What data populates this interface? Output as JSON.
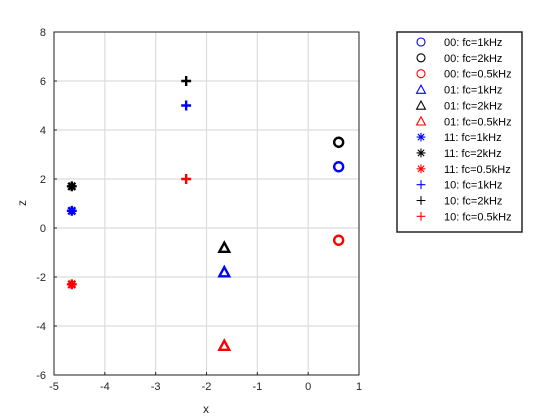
{
  "chart_data": {
    "type": "scatter",
    "title": "",
    "xlabel": "x",
    "ylabel": "z",
    "xlim": [
      -5,
      1
    ],
    "ylim": [
      -6,
      8
    ],
    "xticks": [
      -5,
      -4,
      -3,
      -2,
      -1,
      0,
      1
    ],
    "yticks": [
      -6,
      -4,
      -2,
      0,
      2,
      4,
      6,
      8
    ],
    "xtick_labels": [
      "-5",
      "-4",
      "-3",
      "-2",
      "-1",
      "0",
      "1"
    ],
    "ytick_labels": [
      "-6",
      "-4",
      "-2",
      "0",
      "2",
      "4",
      "6",
      "8"
    ],
    "grid": true,
    "legend_position": "outside-top-right",
    "colors": {
      "blue": "#0000ff",
      "black": "#000000",
      "red": "#ff0000"
    },
    "series": [
      {
        "name": "00: fc=1kHz",
        "marker": "circle",
        "color": "blue",
        "points": [
          [
            0.6,
            2.5
          ]
        ]
      },
      {
        "name": "00: fc=2kHz",
        "marker": "circle",
        "color": "black",
        "points": [
          [
            0.6,
            3.5
          ]
        ]
      },
      {
        "name": "00: fc=0.5kHz",
        "marker": "circle",
        "color": "red",
        "points": [
          [
            0.6,
            -0.5
          ]
        ]
      },
      {
        "name": "01: fc=1kHz",
        "marker": "triangle",
        "color": "blue",
        "points": [
          [
            -1.65,
            -1.8
          ]
        ]
      },
      {
        "name": "01: fc=2kHz",
        "marker": "triangle",
        "color": "black",
        "points": [
          [
            -1.65,
            -0.8
          ]
        ]
      },
      {
        "name": "01: fc=0.5kHz",
        "marker": "triangle",
        "color": "red",
        "points": [
          [
            -1.65,
            -4.8
          ]
        ]
      },
      {
        "name": "11: fc=1kHz",
        "marker": "asterisk",
        "color": "blue",
        "points": [
          [
            -4.65,
            0.7
          ]
        ]
      },
      {
        "name": "11: fc=2kHz",
        "marker": "asterisk",
        "color": "black",
        "points": [
          [
            -4.65,
            1.7
          ]
        ]
      },
      {
        "name": "11: fc=0.5kHz",
        "marker": "asterisk",
        "color": "red",
        "points": [
          [
            -4.65,
            -2.3
          ]
        ]
      },
      {
        "name": "10: fc=1kHz",
        "marker": "plus",
        "color": "blue",
        "points": [
          [
            -2.4,
            5.0
          ]
        ]
      },
      {
        "name": "10: fc=2kHz",
        "marker": "plus",
        "color": "black",
        "points": [
          [
            -2.4,
            6.0
          ]
        ]
      },
      {
        "name": "10: fc=0.5kHz",
        "marker": "plus",
        "color": "red",
        "points": [
          [
            -2.4,
            2.0
          ]
        ]
      }
    ]
  }
}
